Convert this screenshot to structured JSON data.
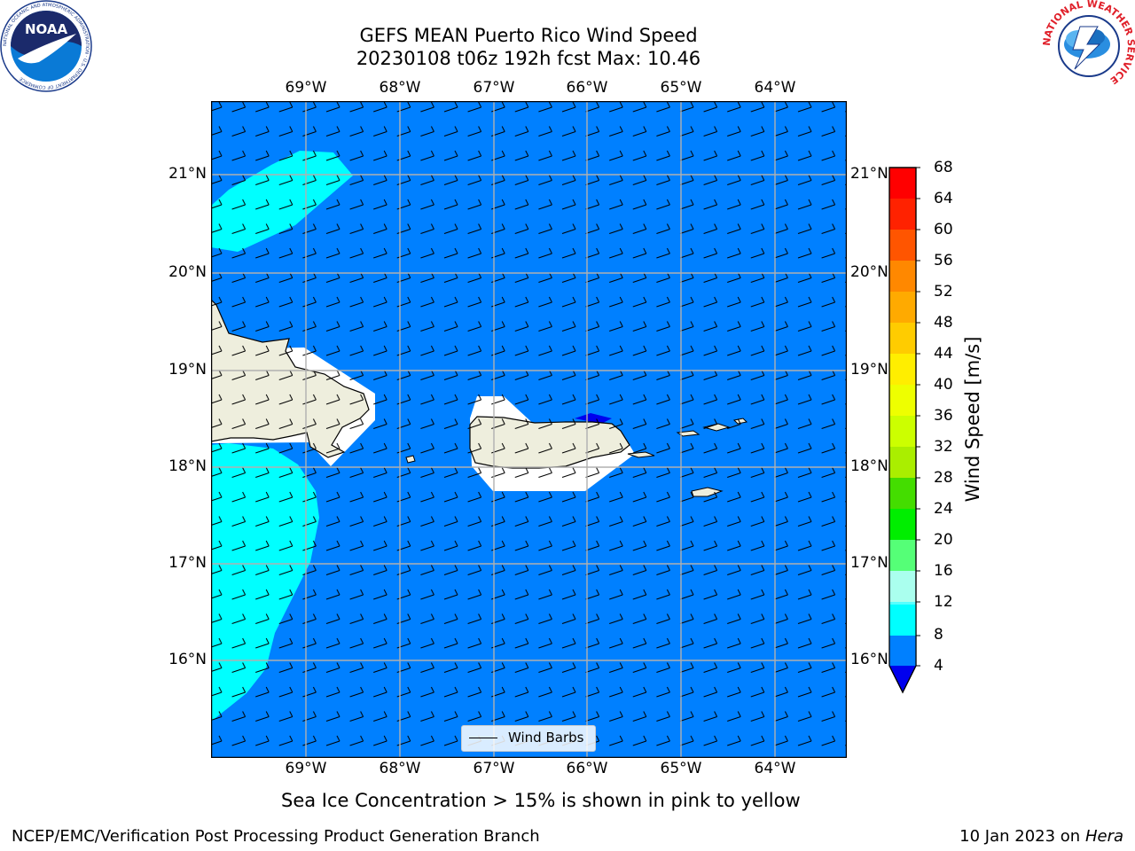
{
  "title": {
    "line1": "GEFS MEAN Puerto Rico Wind Speed",
    "line2": "20230108 t06z 192h fcst   Max: 10.46"
  },
  "map": {
    "lon_labels": [
      "69°W",
      "68°W",
      "67°W",
      "66°W",
      "65°W",
      "64°W"
    ],
    "lat_labels": [
      "21°N",
      "20°N",
      "19°N",
      "18°N",
      "17°N",
      "16°N"
    ],
    "legend_label": "Wind Barbs",
    "ocean_color": "#0080ff",
    "land_color": "#eeeedd",
    "fast_wind_color": "#00ffff"
  },
  "colorbar": {
    "label": "Wind Speed [m/s]",
    "ticks": [
      "68",
      "64",
      "60",
      "56",
      "52",
      "48",
      "44",
      "40",
      "36",
      "32",
      "28",
      "24",
      "20",
      "16",
      "12",
      "8",
      "4"
    ],
    "colors": [
      "#ff0000",
      "#ff2200",
      "#ff5500",
      "#ff8800",
      "#ffaa00",
      "#ffcc00",
      "#ffee00",
      "#eeff00",
      "#ccff00",
      "#aaee00",
      "#44dd00",
      "#00ee00",
      "#55ff77",
      "#aaffee",
      "#55ffff",
      "#00ffff",
      "#0080ff"
    ],
    "under_color": "#0000ee"
  },
  "subtitle": "Sea Ice Concentration > 15% is shown in pink to yellow",
  "footer": {
    "left": "NCEP/EMC/Verification Post Processing Product Generation Branch",
    "date": "10 Jan 2023 on ",
    "host": "Hera"
  },
  "logos": {
    "noaa": "NOAA",
    "noaa_ring": "NATIONAL OCEANIC AND ATMOSPHERIC ADMINISTRATION · U.S. DEPARTMENT OF COMMERCE",
    "nws_ring": "NATIONAL WEATHER SERVICE"
  }
}
